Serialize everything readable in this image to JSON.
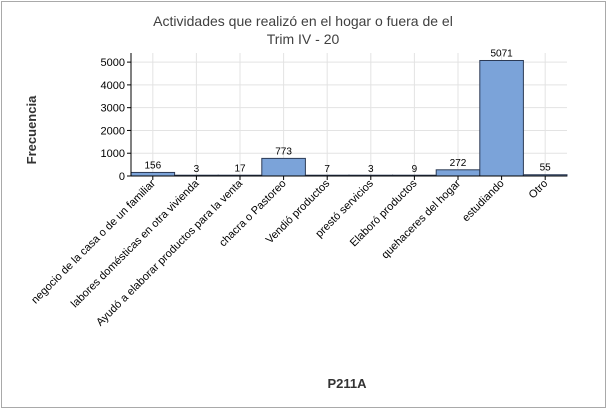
{
  "chart_data": {
    "type": "bar",
    "title": "Actividades que realizó en el hogar o fuera de el",
    "subtitle": "Trim IV - 20",
    "xlabel": "P211A",
    "ylabel": "Frecuencia",
    "categories": [
      "negocio de la casa o de un familiar",
      "labores domésticas en otra vivienda",
      "Ayudó a elaborar productos para la venta",
      "chacra o Pastoreo",
      "Vendió productos",
      "prestó servicios",
      "Elaboró productos",
      "quehaceres del hogar",
      "estudiando",
      "Otro"
    ],
    "values": [
      156,
      3,
      17,
      773,
      7,
      3,
      9,
      272,
      5071,
      55
    ],
    "data_labels": [
      "156",
      "3",
      "17",
      "773",
      "7",
      "3",
      "9",
      "272",
      "5071",
      "55"
    ],
    "yticks": [
      "0",
      "1000",
      "2000",
      "3000",
      "4000",
      "5000"
    ],
    "ylim": [
      0,
      5400
    ],
    "grid": true,
    "bar_color": "#7ba3d9",
    "bar_edge_color": "#2b3a55"
  }
}
